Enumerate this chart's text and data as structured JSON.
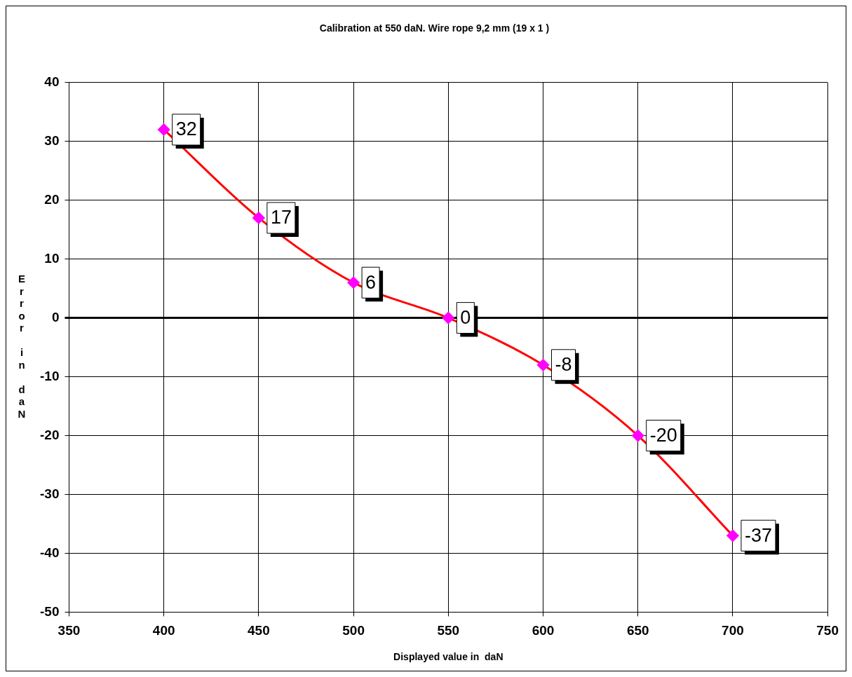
{
  "chart_data": {
    "type": "line",
    "title": "Calibration at 550 daN. Wire rope 9,2 mm (19 x 1 )",
    "xlabel": "Displayed value in  daN",
    "ylabel": "Error in daN",
    "x": [
      400,
      450,
      500,
      550,
      600,
      650,
      700
    ],
    "series": [
      {
        "color": "#ff0000",
        "values": [
          32,
          17,
          6,
          0,
          -8,
          -20,
          -37
        ]
      }
    ],
    "xlim": [
      350,
      750
    ],
    "xticks": [
      350,
      400,
      450,
      500,
      550,
      600,
      650,
      700,
      750
    ],
    "ylim": [
      -50,
      40
    ],
    "yticks": [
      -50,
      -40,
      -30,
      -20,
      -10,
      0,
      10,
      20,
      30,
      40
    ],
    "grid": true,
    "legend": false,
    "marker": "diamond",
    "line_style": "solid",
    "data_labels": true
  }
}
